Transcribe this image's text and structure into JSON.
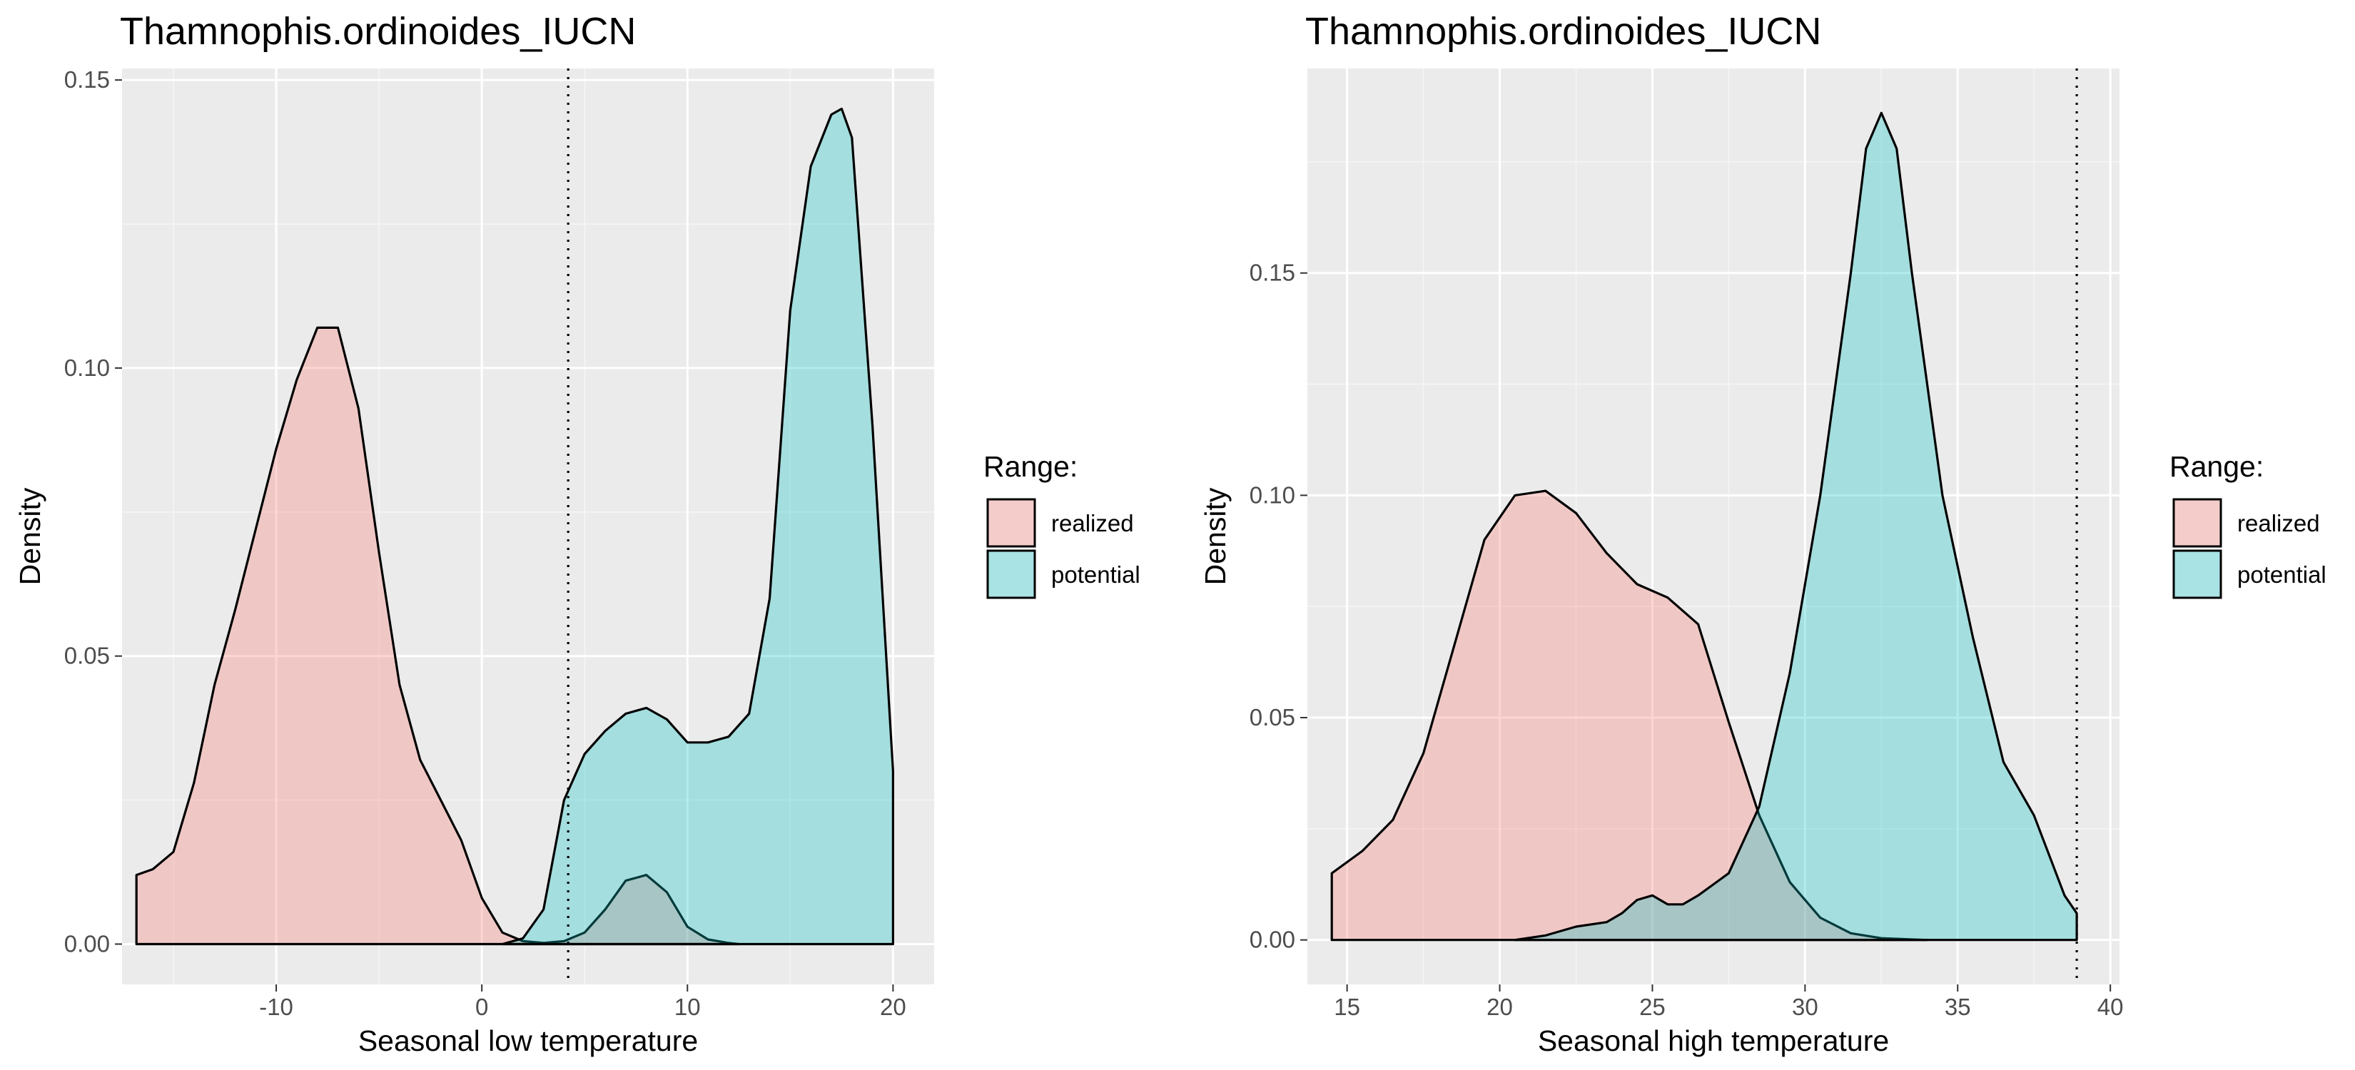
{
  "chart_data": [
    {
      "type": "area",
      "title": "Thamnophis.ordinoides_IUCN",
      "xlabel": "Seasonal low temperature",
      "ylabel": "Density",
      "xlim": [
        -17.5,
        22
      ],
      "ylim": [
        -0.007,
        0.152
      ],
      "x_ticks": [
        -10,
        0,
        10,
        20
      ],
      "x_tick_labels": [
        "-10",
        "0",
        "10",
        "20"
      ],
      "y_ticks": [
        0,
        0.05,
        0.1,
        0.15
      ],
      "y_tick_labels": [
        "0.00",
        "0.05",
        "0.10",
        "0.15"
      ],
      "grid": true,
      "legend": {
        "title": "Range:",
        "position": "right"
      },
      "vline": {
        "x": 4.2,
        "style": "dotted"
      },
      "series": [
        {
          "name": "realized",
          "color": "#F8766D",
          "x": [
            -16.8,
            -16.8,
            -16.0,
            -15.0,
            -14.0,
            -13.0,
            -12.0,
            -11.0,
            -10.0,
            -9.0,
            -8.0,
            -7.0,
            -6.0,
            -5.0,
            -4.0,
            -3.0,
            -2.0,
            -1.0,
            0.0,
            1.0,
            2.0,
            3.0,
            4.0,
            5.0,
            6.0,
            7.0,
            8.0,
            9.0,
            10.0,
            11.0,
            12.0,
            12.5
          ],
          "y": [
            0,
            0.012,
            0.013,
            0.016,
            0.028,
            0.045,
            0.058,
            0.072,
            0.086,
            0.098,
            0.107,
            0.107,
            0.093,
            0.068,
            0.045,
            0.032,
            0.025,
            0.018,
            0.008,
            0.002,
            0.0005,
            0.0002,
            0.0005,
            0.002,
            0.006,
            0.011,
            0.012,
            0.009,
            0.003,
            0.0008,
            0.0002,
            0
          ]
        },
        {
          "name": "potential",
          "color": "#00BFC4",
          "x": [
            1.0,
            2.0,
            3.0,
            4.0,
            5.0,
            6.0,
            7.0,
            8.0,
            9.0,
            10.0,
            11.0,
            12.0,
            13.0,
            14.0,
            15.0,
            16.0,
            17.0,
            17.5,
            18.0,
            19.0,
            20.0,
            20.0
          ],
          "y": [
            0,
            0.001,
            0.006,
            0.025,
            0.033,
            0.037,
            0.04,
            0.041,
            0.039,
            0.035,
            0.035,
            0.036,
            0.04,
            0.06,
            0.11,
            0.135,
            0.144,
            0.145,
            0.14,
            0.09,
            0.03,
            0
          ]
        }
      ]
    },
    {
      "type": "area",
      "title": "Thamnophis.ordinoides_IUCN",
      "xlabel": "Seasonal high temperature",
      "ylabel": "Density",
      "xlim": [
        13.7,
        40.3
      ],
      "ylim": [
        -0.01,
        0.196
      ],
      "x_ticks": [
        15,
        20,
        25,
        30,
        35,
        40
      ],
      "x_tick_labels": [
        "15",
        "20",
        "25",
        "30",
        "35",
        "40"
      ],
      "y_ticks": [
        0,
        0.05,
        0.1,
        0.15
      ],
      "y_tick_labels": [
        "0.00",
        "0.05",
        "0.10",
        "0.15"
      ],
      "grid": true,
      "legend": {
        "title": "Range:",
        "position": "right"
      },
      "vline": {
        "x": 38.9,
        "style": "dotted"
      },
      "series": [
        {
          "name": "realized",
          "color": "#F8766D",
          "x": [
            14.5,
            14.5,
            15.5,
            16.5,
            17.5,
            18.5,
            19.5,
            20.5,
            21.5,
            22.5,
            23.5,
            24.5,
            25.5,
            26.5,
            27.5,
            28.5,
            29.5,
            30.5,
            31.5,
            32.5,
            33.5,
            34.0
          ],
          "y": [
            0,
            0.015,
            0.02,
            0.027,
            0.042,
            0.066,
            0.09,
            0.1,
            0.101,
            0.096,
            0.087,
            0.08,
            0.077,
            0.071,
            0.049,
            0.028,
            0.013,
            0.005,
            0.0015,
            0.0004,
            0.0001,
            0
          ]
        },
        {
          "name": "potential",
          "color": "#00BFC4",
          "x": [
            20.5,
            21.5,
            22.5,
            23.5,
            24.0,
            24.5,
            25.0,
            25.5,
            26.0,
            26.5,
            27.5,
            28.5,
            29.5,
            30.5,
            31.5,
            32.0,
            32.5,
            33.0,
            33.5,
            34.5,
            35.5,
            36.5,
            37.5,
            38.5,
            38.9,
            38.9
          ],
          "y": [
            0,
            0.001,
            0.003,
            0.004,
            0.006,
            0.009,
            0.01,
            0.008,
            0.008,
            0.01,
            0.015,
            0.03,
            0.06,
            0.1,
            0.15,
            0.178,
            0.186,
            0.178,
            0.15,
            0.1,
            0.068,
            0.04,
            0.028,
            0.01,
            0.006,
            0
          ]
        }
      ]
    }
  ]
}
